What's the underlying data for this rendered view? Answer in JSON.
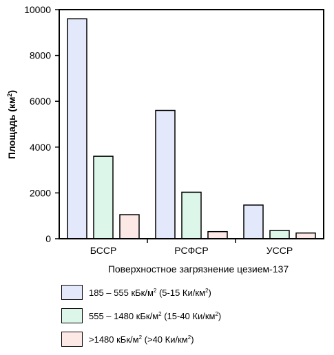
{
  "chart_data": {
    "type": "bar",
    "categories": [
      "БССР",
      "РСФСР",
      "УССР"
    ],
    "series": [
      {
        "name": "185 – 555 кБк/м² (5-15 Ки/км²)",
        "values": [
          9600,
          5600,
          1470
        ],
        "color": "#e3e9fb"
      },
      {
        "name": "555 – 1480 кБк/м² (15-40 Ки/км²)",
        "values": [
          3600,
          2030,
          360
        ],
        "color": "#dcf7ea"
      },
      {
        "name": ">1480 кБк/м² (>40 Ки/км²)",
        "values": [
          1050,
          310,
          250
        ],
        "color": "#fce9e6"
      }
    ],
    "xlabel": "Поверхностное загрязнение цезием-137",
    "ylabel": "Площадь (км²)",
    "ylim": [
      0,
      10000
    ],
    "yticks": [
      "0",
      "2000",
      "4000",
      "6000",
      "8000",
      "10000"
    ],
    "legend_position": "bottom",
    "grid": false
  },
  "legend": [
    {
      "label": "185 – 555 кБк/м²  (5-15 Ки/км²)",
      "color": "#e3e9fb"
    },
    {
      "label": "555 – 1480 кБк/м²  (15-40 Ки/км²)",
      "color": "#dcf7ea"
    },
    {
      "label": ">1480 кБк/м²  (>40 Ки/км²)",
      "color": "#fce9e6"
    }
  ]
}
